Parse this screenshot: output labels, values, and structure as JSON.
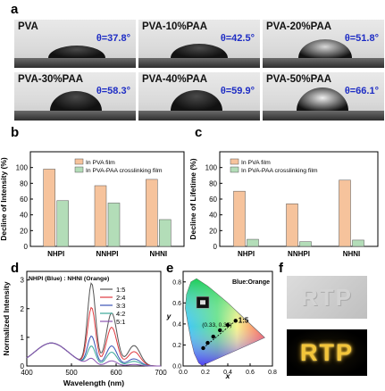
{
  "panel_labels": {
    "a": "a",
    "b": "b",
    "c": "c",
    "d": "d",
    "e": "e",
    "f": "f"
  },
  "panel_a": {
    "photos": [
      {
        "title": "PVA",
        "angle": "θ=37.8°"
      },
      {
        "title": "PVA-10%PAA",
        "angle": "θ=42.5°"
      },
      {
        "title": "PVA-20%PAA",
        "angle": "θ=51.8°"
      },
      {
        "title": "PVA-30%PAA",
        "angle": "θ=58.3°"
      },
      {
        "title": "PVA-40%PAA",
        "angle": "θ=59.9°"
      },
      {
        "title": "PVA-50%PAA",
        "angle": "θ=66.1°"
      }
    ]
  },
  "panel_f": {
    "text": "RTP"
  },
  "chart_data": [
    {
      "panel": "b",
      "type": "bar",
      "categories": [
        "NHPI",
        "NNHPI",
        "NHNI"
      ],
      "series": [
        {
          "name": "In PVA film",
          "values": [
            98,
            77,
            85
          ],
          "color": "#f6c39c"
        },
        {
          "name": "In PVA-PAA crosslinking film",
          "values": [
            58,
            55,
            34
          ],
          "color": "#b3ddb8"
        }
      ],
      "ylabel": "Decline of Intensity (%)",
      "ylim": [
        0,
        120
      ],
      "yticks": [
        0,
        20,
        40,
        60,
        80,
        100
      ],
      "legend": "top-right"
    },
    {
      "panel": "c",
      "type": "bar",
      "categories": [
        "NHPI",
        "NNHPI",
        "NHNI"
      ],
      "series": [
        {
          "name": "In PVA film",
          "values": [
            70,
            54,
            84
          ],
          "color": "#f6c39c"
        },
        {
          "name": "In PVA-PAA crosslinking film",
          "values": [
            9,
            6,
            8
          ],
          "color": "#b3ddb8"
        }
      ],
      "ylabel": "Decline of Lifetime (%)",
      "ylim": [
        0,
        120
      ],
      "yticks": [
        0,
        20,
        40,
        60,
        80,
        100
      ],
      "legend": "top-left"
    },
    {
      "panel": "d",
      "type": "line",
      "xlabel": "Wavelength (nm)",
      "ylabel": "Normalized Intensity",
      "xlim": [
        400,
        700
      ],
      "ylim": [
        0,
        3.3
      ],
      "xticks": [
        400,
        500,
        600,
        700
      ],
      "yticks": [
        0,
        1,
        2,
        3
      ],
      "legend_title": "NHPI (Blue) : NHNI (Orange)",
      "legend": "top-right",
      "series": [
        {
          "name": "1:5",
          "color": "#555555",
          "peaks": [
            0.8,
            2.85,
            1.85
          ]
        },
        {
          "name": "2:4",
          "color": "#e0393e",
          "peaks": [
            0.8,
            2.0,
            1.35
          ]
        },
        {
          "name": "3:3",
          "color": "#3a53b5",
          "peaks": [
            0.8,
            1.0,
            0.7
          ]
        },
        {
          "name": "4:2",
          "color": "#3aa89a",
          "peaks": [
            0.8,
            0.65,
            0.48
          ]
        },
        {
          "name": "5:1",
          "color": "#8a52b0",
          "peaks": [
            0.8,
            0.22,
            0.18
          ]
        }
      ]
    },
    {
      "panel": "e",
      "type": "scatter",
      "xlabel": "x",
      "ylabel": "y",
      "xlim": [
        0,
        0.8
      ],
      "ylim": [
        0,
        0.9
      ],
      "xticks": [
        "0.0",
        "0.2",
        "0.4",
        "0.6",
        "0.8"
      ],
      "yticks": [
        "0.0",
        "0.2",
        "0.4",
        "0.6",
        "0.8"
      ],
      "label": "Blue:Orange",
      "annotations": [
        {
          "text": "(0.33, 0.35)",
          "x": 0.33,
          "y": 0.35
        },
        {
          "text": "1:5",
          "x": 0.47,
          "y": 0.43
        }
      ],
      "points": [
        {
          "x": 0.18,
          "y": 0.17
        },
        {
          "x": 0.22,
          "y": 0.22
        },
        {
          "x": 0.27,
          "y": 0.28
        },
        {
          "x": 0.33,
          "y": 0.34
        },
        {
          "x": 0.4,
          "y": 0.39
        },
        {
          "x": 0.47,
          "y": 0.43
        }
      ]
    }
  ]
}
